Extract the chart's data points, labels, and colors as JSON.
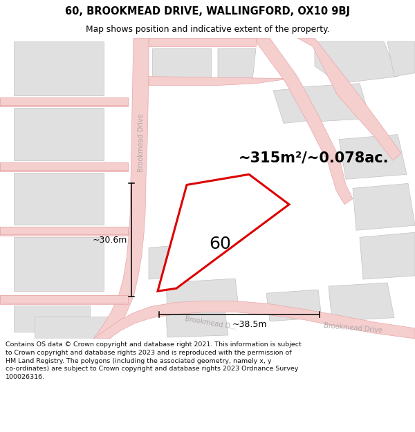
{
  "title": "60, BROOKMEAD DRIVE, WALLINGFORD, OX10 9BJ",
  "subtitle": "Map shows position and indicative extent of the property.",
  "area_text": "~315m²/~0.078ac.",
  "label": "60",
  "dim_h": "~30.6m",
  "dim_w": "~38.5m",
  "footer": "Contains OS data © Crown copyright and database right 2021. This information is subject to Crown copyright and database rights 2023 and is reproduced with the permission of HM Land Registry. The polygons (including the associated geometry, namely x, y co-ordinates) are subject to Crown copyright and database rights 2023 Ordnance Survey 100026316.",
  "bg_color": "#f5f4f2",
  "road_color": "#f5cece",
  "road_edge": "#e8a8a8",
  "building_color": "#e0e0e0",
  "building_edge": "#c8c0c0",
  "highlight_color": "#dd0000",
  "highlight_fill": "#ffffff",
  "road_label_color": "#b0a8a8",
  "title_color": "#000000",
  "footer_color": "#111111"
}
